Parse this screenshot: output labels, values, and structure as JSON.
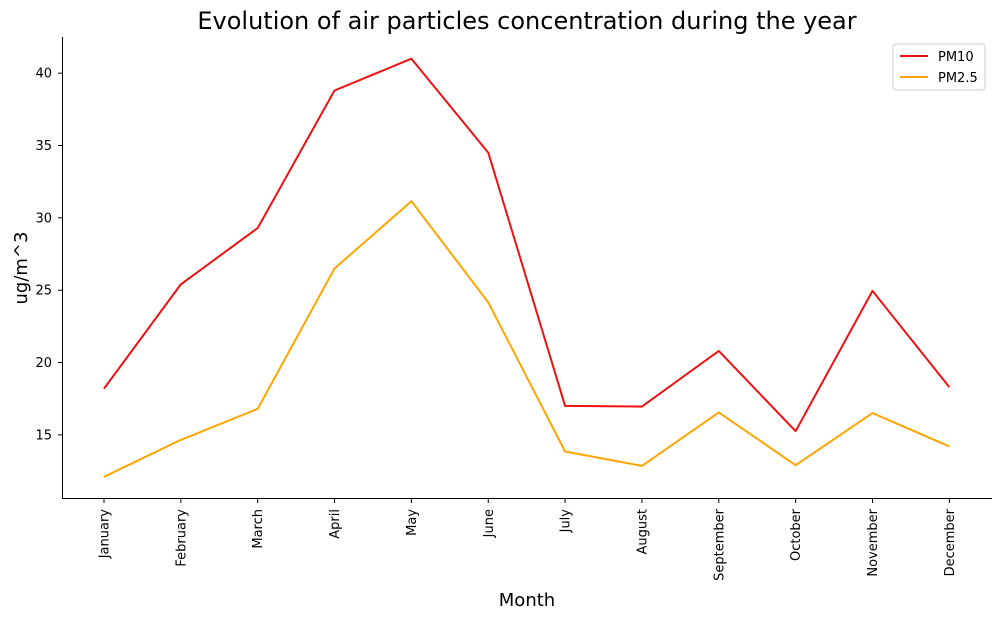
{
  "chart_data": {
    "type": "line",
    "title": "Evolution of air particles concentration during the year",
    "xlabel": "Month",
    "ylabel": "ug/m^3",
    "categories": [
      "January",
      "February",
      "March",
      "April",
      "May",
      "June",
      "July",
      "August",
      "September",
      "October",
      "November",
      "December"
    ],
    "series": [
      {
        "name": "PM10",
        "color": "#ee1111",
        "values": [
          18.2,
          25.4,
          29.3,
          38.8,
          41.0,
          34.5,
          17.0,
          16.95,
          20.8,
          15.25,
          24.95,
          18.3
        ]
      },
      {
        "name": "PM2.5",
        "color": "#ffa500",
        "values": [
          12.1,
          14.65,
          16.8,
          26.5,
          31.15,
          24.15,
          13.85,
          12.85,
          16.55,
          12.9,
          16.5,
          14.2
        ]
      }
    ],
    "yticks": [
      15,
      20,
      25,
      30,
      35,
      40
    ],
    "ylim": [
      10.6,
      42.5
    ],
    "grid": false,
    "legend_position": "top-right"
  }
}
